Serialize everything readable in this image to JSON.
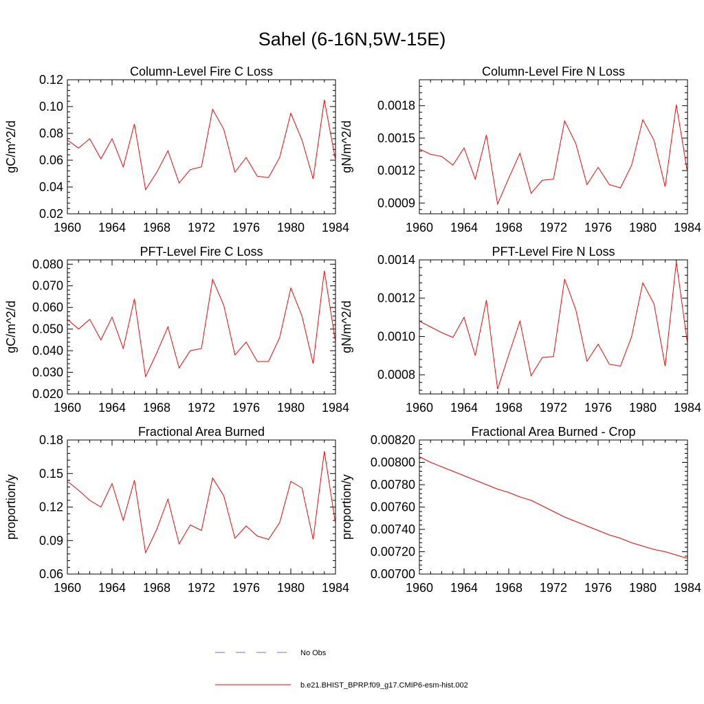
{
  "figure": {
    "title": "Sahel (6-16N,5W-15E)"
  },
  "colors": {
    "series": "#ff0000",
    "obs": "#6f6fbf",
    "axis": "#000000"
  },
  "legend": {
    "obs_label": "No Obs",
    "model_label": "b.e21.BHIST_BPRP.f09_g17.CMIP6-esm-hist.002"
  },
  "chart_data": [
    {
      "type": "line",
      "title": "Column-Level Fire C Loss",
      "ylabel": "gC/m^2/d",
      "xlabel": "",
      "xlim": [
        1960,
        1984
      ],
      "ylim": [
        0.02,
        0.12
      ],
      "xticks": [
        1960,
        1964,
        1968,
        1972,
        1976,
        1980,
        1984
      ],
      "yticks": [
        0.02,
        0.04,
        0.06,
        0.08,
        0.1,
        0.12
      ],
      "ytick_labels": [
        "0.02",
        "0.04",
        "0.06",
        "0.08",
        "0.10",
        "0.12"
      ],
      "series": [
        {
          "name": "b.e21.BHIST_BPRP.f09_g17.CMIP6-esm-hist.002",
          "x": [
            1960,
            1961,
            1962,
            1963,
            1964,
            1965,
            1966,
            1967,
            1968,
            1969,
            1970,
            1971,
            1972,
            1973,
            1974,
            1975,
            1976,
            1977,
            1978,
            1979,
            1980,
            1981,
            1982,
            1983,
            1984
          ],
          "values": [
            0.075,
            0.069,
            0.076,
            0.061,
            0.076,
            0.055,
            0.087,
            0.038,
            0.051,
            0.067,
            0.043,
            0.053,
            0.055,
            0.098,
            0.083,
            0.051,
            0.062,
            0.048,
            0.047,
            0.062,
            0.095,
            0.075,
            0.046,
            0.105,
            0.06
          ]
        }
      ]
    },
    {
      "type": "line",
      "title": "Column-Level Fire N Loss",
      "ylabel": "gN/m^2/d",
      "xlabel": "",
      "xlim": [
        1960,
        1984
      ],
      "ylim": [
        0.0008,
        0.00204
      ],
      "xticks": [
        1960,
        1964,
        1968,
        1972,
        1976,
        1980,
        1984
      ],
      "yticks": [
        0.0009,
        0.0012,
        0.0015,
        0.0018
      ],
      "ytick_labels": [
        "0.0009",
        "0.0012",
        "0.0015",
        "0.0018"
      ],
      "series": [
        {
          "name": "b.e21.BHIST_BPRP.f09_g17.CMIP6-esm-hist.002",
          "x": [
            1960,
            1961,
            1962,
            1963,
            1964,
            1965,
            1966,
            1967,
            1968,
            1969,
            1970,
            1971,
            1972,
            1973,
            1974,
            1975,
            1976,
            1977,
            1978,
            1979,
            1980,
            1981,
            1982,
            1983,
            1984
          ],
          "values": [
            0.0014,
            0.00135,
            0.00133,
            0.00125,
            0.00141,
            0.00112,
            0.00153,
            0.00089,
            0.00113,
            0.00136,
            0.00099,
            0.00111,
            0.00112,
            0.00166,
            0.00145,
            0.00107,
            0.00123,
            0.00107,
            0.00104,
            0.00125,
            0.00167,
            0.00148,
            0.00105,
            0.00181,
            0.00118
          ]
        }
      ]
    },
    {
      "type": "line",
      "title": "PFT-Level Fire C Loss",
      "ylabel": "gC/m^2/d",
      "xlabel": "",
      "xlim": [
        1960,
        1984
      ],
      "ylim": [
        0.02,
        0.082
      ],
      "xticks": [
        1960,
        1964,
        1968,
        1972,
        1976,
        1980,
        1984
      ],
      "yticks": [
        0.02,
        0.03,
        0.04,
        0.05,
        0.06,
        0.07,
        0.08
      ],
      "ytick_labels": [
        "0.020",
        "0.030",
        "0.040",
        "0.050",
        "0.060",
        "0.070",
        "0.080"
      ],
      "series": [
        {
          "name": "b.e21.BHIST_BPRP.f09_g17.CMIP6-esm-hist.002",
          "x": [
            1960,
            1961,
            1962,
            1963,
            1964,
            1965,
            1966,
            1967,
            1968,
            1969,
            1970,
            1971,
            1972,
            1973,
            1974,
            1975,
            1976,
            1977,
            1978,
            1979,
            1980,
            1981,
            1982,
            1983,
            1984
          ],
          "values": [
            0.0545,
            0.05,
            0.0545,
            0.045,
            0.0555,
            0.041,
            0.064,
            0.028,
            0.039,
            0.051,
            0.032,
            0.04,
            0.041,
            0.073,
            0.061,
            0.038,
            0.044,
            0.035,
            0.035,
            0.046,
            0.069,
            0.056,
            0.034,
            0.077,
            0.044
          ]
        }
      ]
    },
    {
      "type": "line",
      "title": "PFT-Level Fire N Loss",
      "ylabel": "gN/m^2/d",
      "xlabel": "",
      "xlim": [
        1960,
        1984
      ],
      "ylim": [
        0.0007,
        0.0014
      ],
      "xticks": [
        1960,
        1964,
        1968,
        1972,
        1976,
        1980,
        1984
      ],
      "yticks": [
        0.0008,
        0.001,
        0.0012,
        0.0014
      ],
      "ytick_labels": [
        "0.0008",
        "0.0010",
        "0.0012",
        "0.0014"
      ],
      "series": [
        {
          "name": "b.e21.BHIST_BPRP.f09_g17.CMIP6-esm-hist.002",
          "x": [
            1960,
            1961,
            1962,
            1963,
            1964,
            1965,
            1966,
            1967,
            1968,
            1969,
            1970,
            1971,
            1972,
            1973,
            1974,
            1975,
            1976,
            1977,
            1978,
            1979,
            1980,
            1981,
            1982,
            1983,
            1984
          ],
          "values": [
            0.00108,
            0.00105,
            0.00102,
            0.000995,
            0.0011,
            0.0009,
            0.00119,
            0.000725,
            0.000905,
            0.00108,
            0.000795,
            0.00089,
            0.000895,
            0.0013,
            0.00114,
            0.00087,
            0.00096,
            0.000855,
            0.000845,
            0.001,
            0.00128,
            0.00117,
            0.000845,
            0.00139,
            0.00096
          ]
        }
      ]
    },
    {
      "type": "line",
      "title": "Fractional Area Burned",
      "ylabel": "proportion/y",
      "xlabel": "",
      "xlim": [
        1960,
        1984
      ],
      "ylim": [
        0.06,
        0.18
      ],
      "xticks": [
        1960,
        1964,
        1968,
        1972,
        1976,
        1980,
        1984
      ],
      "yticks": [
        0.06,
        0.09,
        0.12,
        0.15,
        0.18
      ],
      "ytick_labels": [
        "0.06",
        "0.09",
        "0.12",
        "0.15",
        "0.18"
      ],
      "series": [
        {
          "name": "b.e21.BHIST_BPRP.f09_g17.CMIP6-esm-hist.002",
          "x": [
            1960,
            1961,
            1962,
            1963,
            1964,
            1965,
            1966,
            1967,
            1968,
            1969,
            1970,
            1971,
            1972,
            1973,
            1974,
            1975,
            1976,
            1977,
            1978,
            1979,
            1980,
            1981,
            1982,
            1983,
            1984
          ],
          "values": [
            0.143,
            0.135,
            0.126,
            0.12,
            0.141,
            0.108,
            0.144,
            0.079,
            0.1,
            0.127,
            0.087,
            0.104,
            0.099,
            0.146,
            0.13,
            0.092,
            0.103,
            0.094,
            0.091,
            0.106,
            0.143,
            0.137,
            0.091,
            0.17,
            0.105
          ]
        }
      ]
    },
    {
      "type": "line",
      "title": "Fractional Area Burned - Crop",
      "ylabel": "proportion/y",
      "xlabel": "",
      "xlim": [
        1960,
        1984
      ],
      "ylim": [
        0.007,
        0.0082
      ],
      "xticks": [
        1960,
        1964,
        1968,
        1972,
        1976,
        1980,
        1984
      ],
      "yticks": [
        0.007,
        0.0072,
        0.0074,
        0.0076,
        0.0078,
        0.008,
        0.0082
      ],
      "ytick_labels": [
        "0.00700",
        "0.00720",
        "0.00740",
        "0.00760",
        "0.00780",
        "0.00800",
        "0.00820"
      ],
      "series": [
        {
          "name": "b.e21.BHIST_BPRP.f09_g17.CMIP6-esm-hist.002",
          "x": [
            1960,
            1961,
            1962,
            1963,
            1964,
            1965,
            1966,
            1967,
            1968,
            1969,
            1970,
            1971,
            1972,
            1973,
            1974,
            1975,
            1976,
            1977,
            1978,
            1979,
            1980,
            1981,
            1982,
            1983,
            1984
          ],
          "values": [
            0.00805,
            0.008,
            0.00796,
            0.00792,
            0.00788,
            0.00784,
            0.0078,
            0.00776,
            0.00773,
            0.00769,
            0.00766,
            0.00761,
            0.00756,
            0.00751,
            0.00747,
            0.00743,
            0.00739,
            0.00735,
            0.00732,
            0.00728,
            0.00725,
            0.00722,
            0.0072,
            0.00717,
            0.00714
          ]
        }
      ]
    }
  ]
}
